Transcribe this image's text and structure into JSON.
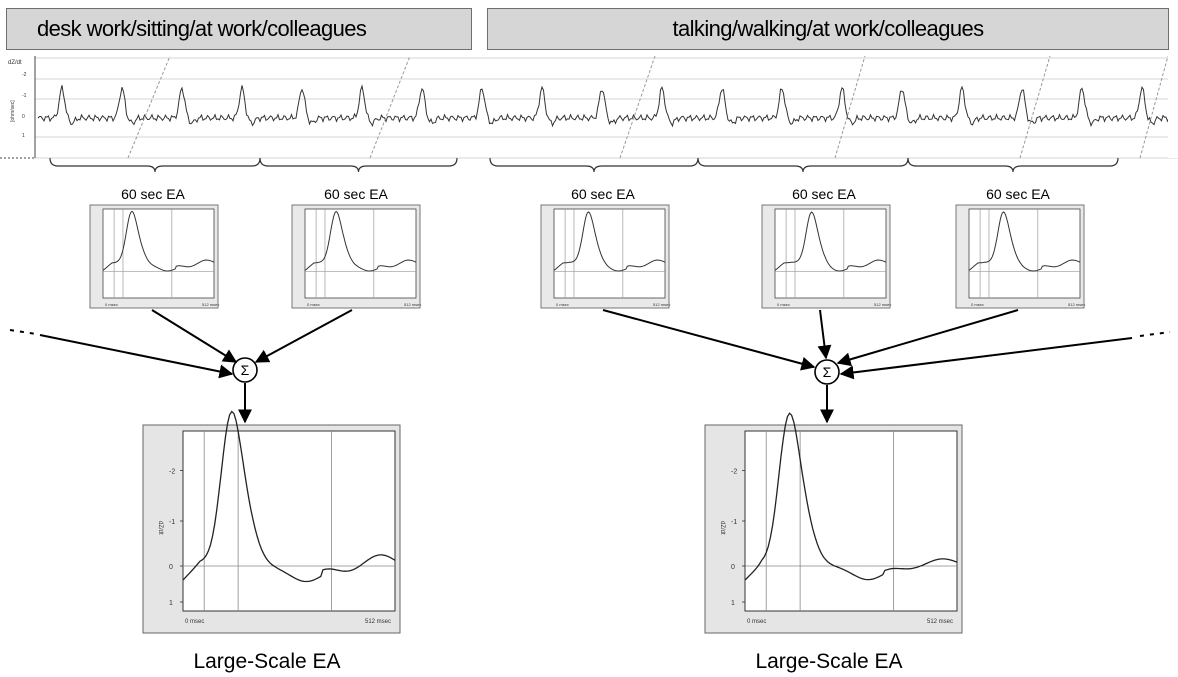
{
  "segments": {
    "left": "desk work/sitting/at work/colleagues",
    "right": "talking/walking/at work/colleagues"
  },
  "recording": {
    "y_axis_unit": "dZ/dt",
    "y_axis_label": "[ohm/sec]",
    "y_ticks": [
      "-2",
      "-1",
      "0",
      "1"
    ]
  },
  "short_averages": {
    "label": "60 sec EA",
    "count": 5,
    "x_start": "0 msec",
    "x_end": "512 msec"
  },
  "summation_symbol": "Σ",
  "large_scale": {
    "label": "Large-Scale EA",
    "y_axis_label": "dZ/dt",
    "y_ticks": [
      "-2",
      "-1",
      "0",
      "1"
    ],
    "x_start": "0 msec",
    "x_end": "512 msec"
  }
}
